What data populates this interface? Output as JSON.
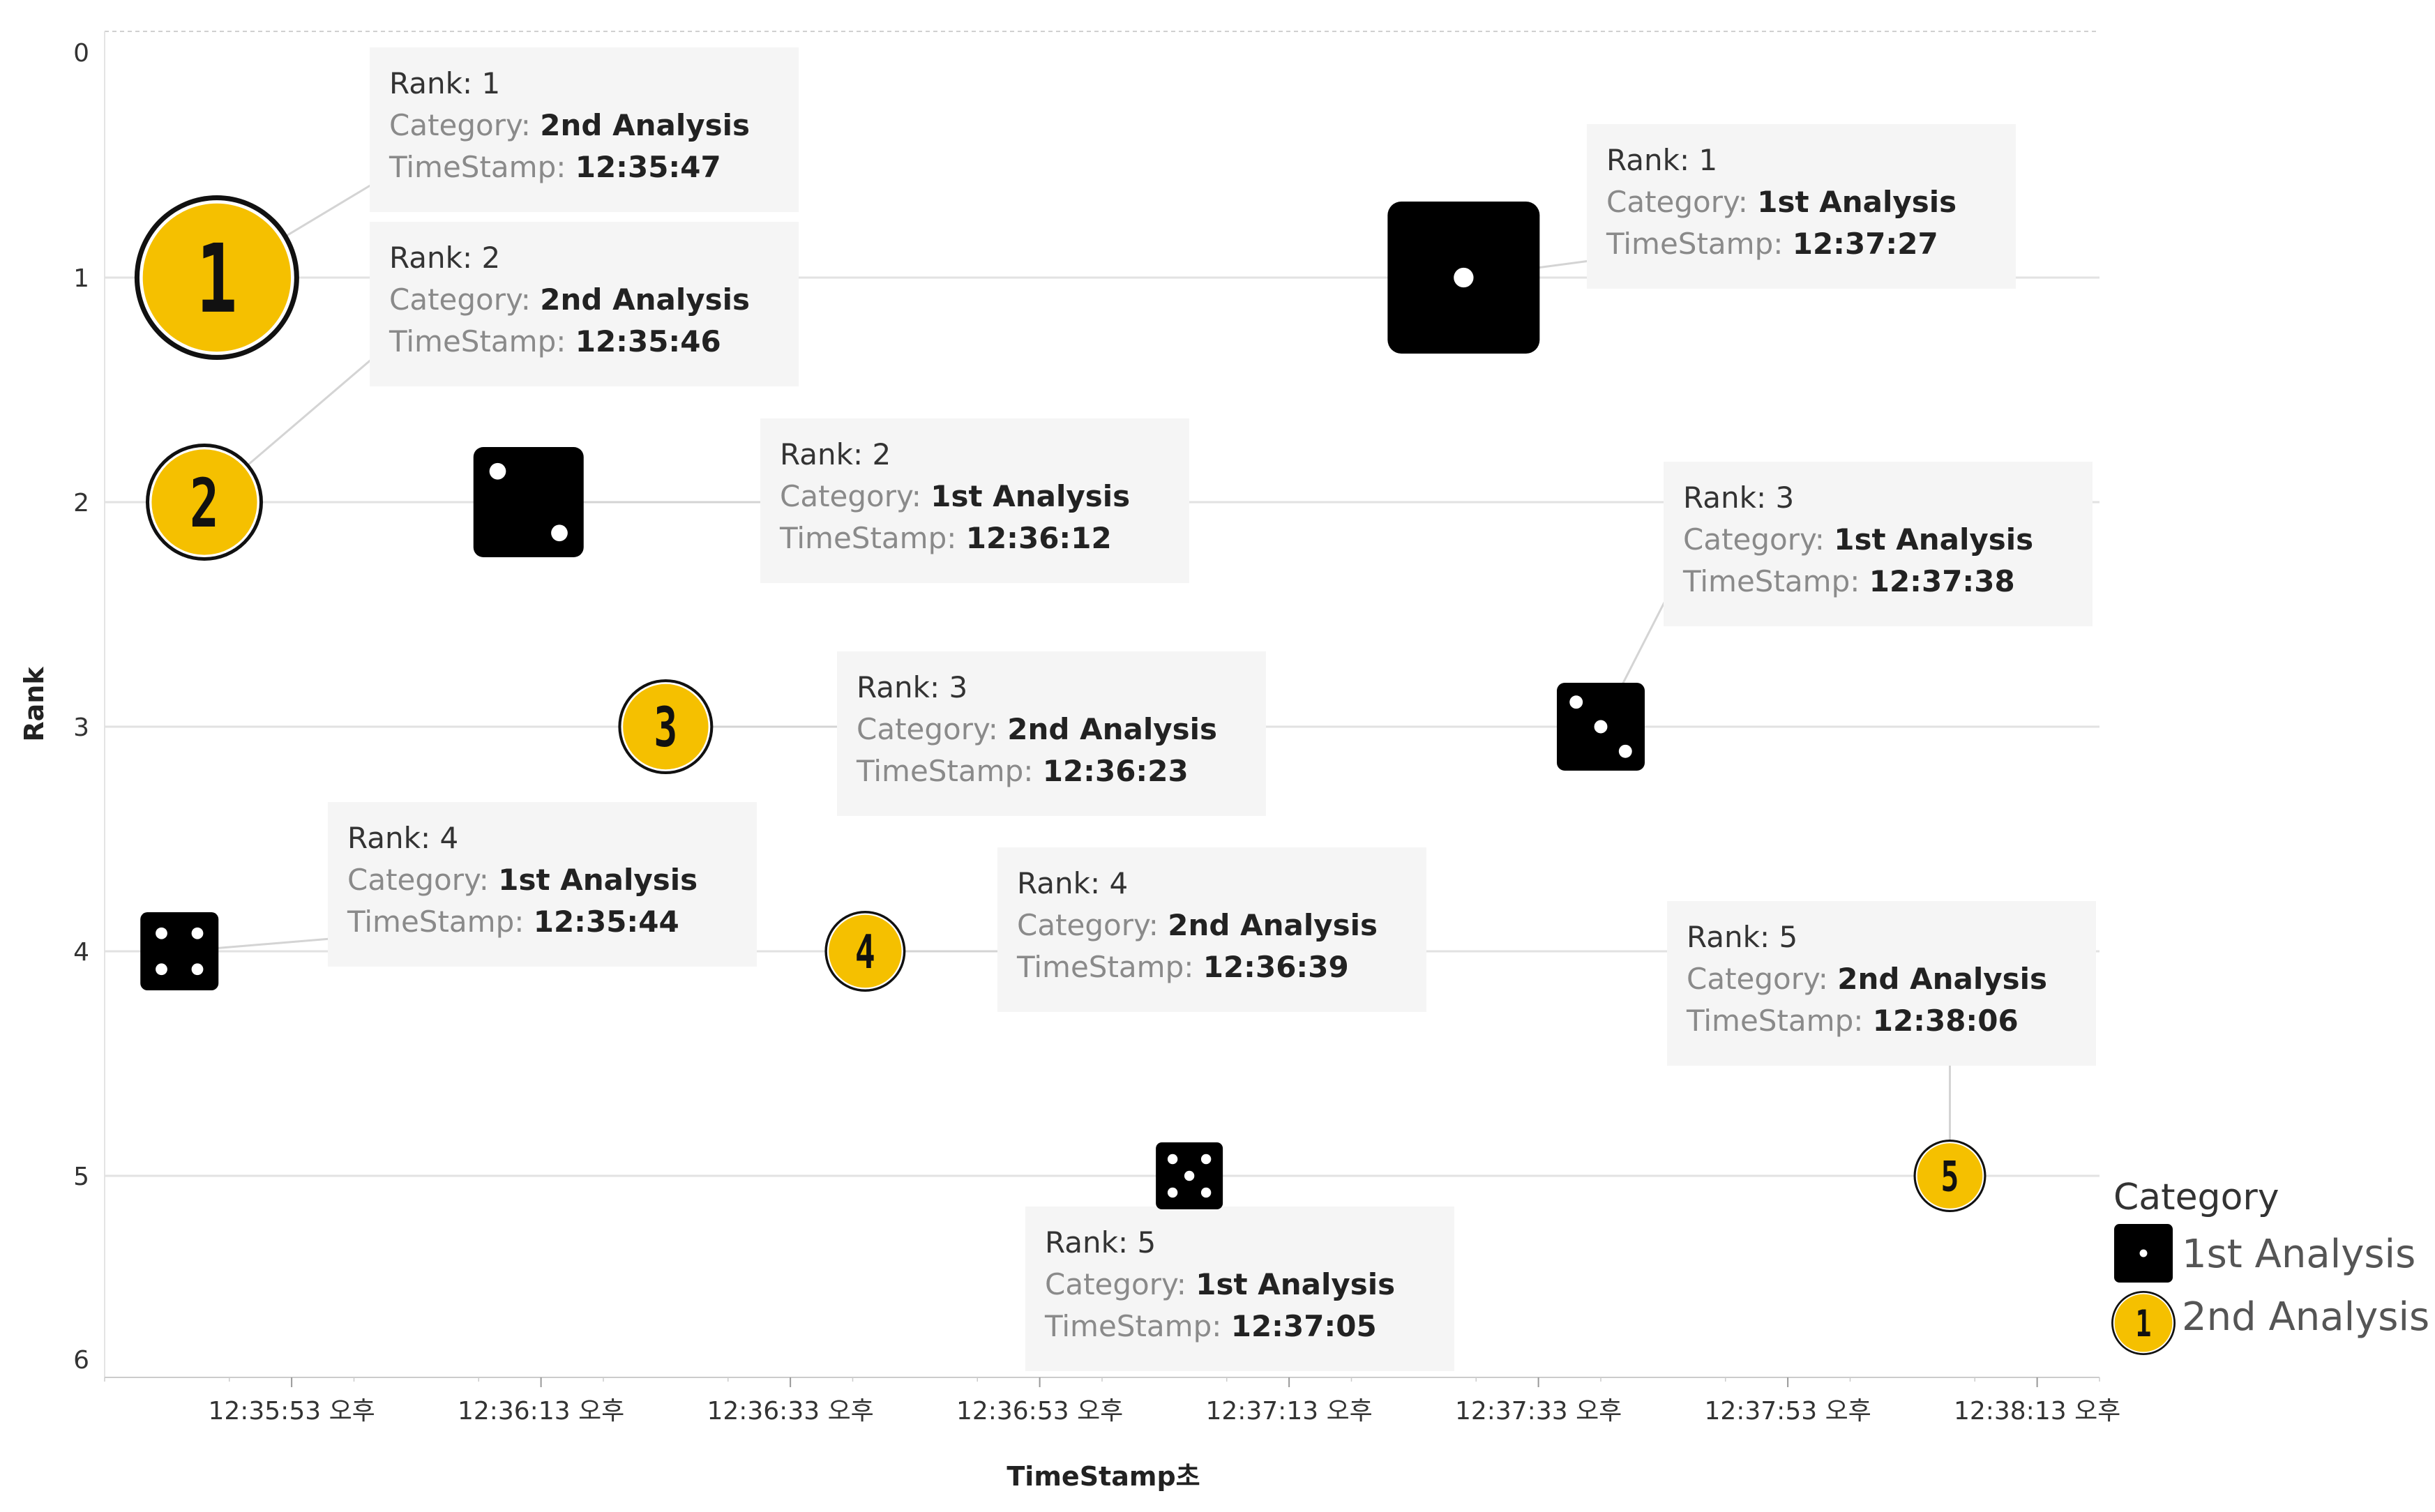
{
  "chart_data": {
    "type": "scatter",
    "title": "",
    "xlabel": "TimeStamp초",
    "ylabel": "Rank",
    "ylim": [
      0,
      6
    ],
    "y_reversed": true,
    "yticks": [
      "0",
      "1",
      "2",
      "3",
      "4",
      "5",
      "6"
    ],
    "xlim": [
      "12:35:38",
      "12:38:18"
    ],
    "xticks": [
      {
        "t": "12:35:53",
        "label": "12:35:53 오후"
      },
      {
        "t": "12:36:13",
        "label": "12:36:13 오후"
      },
      {
        "t": "12:36:33",
        "label": "12:36:33 오후"
      },
      {
        "t": "12:36:53",
        "label": "12:36:53 오후"
      },
      {
        "t": "12:37:13",
        "label": "12:37:13 오후"
      },
      {
        "t": "12:37:33",
        "label": "12:37:33 오후"
      },
      {
        "t": "12:37:53",
        "label": "12:37:53 오후"
      },
      {
        "t": "12:38:13",
        "label": "12:38:13 오후"
      }
    ],
    "grid": true,
    "legend": {
      "title": "Category",
      "position": "bottom-right",
      "items": [
        {
          "label": "1st Analysis",
          "marker": "die",
          "color": "#000000"
        },
        {
          "label": "2nd Analysis",
          "marker": "numbered-circle",
          "color": "#f5c000",
          "sample": "1"
        }
      ]
    },
    "tooltip_keys": {
      "rank": "Rank:",
      "category": "Category:",
      "timestamp": "TimeStamp:"
    },
    "series": [
      {
        "name": "1st Analysis",
        "points": [
          {
            "rank": 1,
            "time": "12:37:27",
            "rank_text": "1",
            "category": "1st Analysis",
            "timestamp": "12:37:27"
          },
          {
            "rank": 2,
            "time": "12:36:12",
            "rank_text": "2",
            "category": "1st Analysis",
            "timestamp": "12:36:12"
          },
          {
            "rank": 3,
            "time": "12:37:38",
            "rank_text": "3",
            "category": "1st Analysis",
            "timestamp": "12:37:38"
          },
          {
            "rank": 4,
            "time": "12:35:44",
            "rank_text": "4",
            "category": "1st Analysis",
            "timestamp": "12:35:44"
          },
          {
            "rank": 5,
            "time": "12:37:05",
            "rank_text": "5",
            "category": "1st Analysis",
            "timestamp": "12:37:05"
          }
        ]
      },
      {
        "name": "2nd Analysis",
        "points": [
          {
            "rank": 1,
            "time": "12:35:47",
            "rank_text": "1",
            "category": "2nd Analysis",
            "timestamp": "12:35:47"
          },
          {
            "rank": 2,
            "time": "12:35:46",
            "rank_text": "2",
            "category": "2nd Analysis",
            "timestamp": "12:35:46"
          },
          {
            "rank": 3,
            "time": "12:36:23",
            "rank_text": "3",
            "category": "2nd Analysis",
            "timestamp": "12:36:23"
          },
          {
            "rank": 4,
            "time": "12:36:39",
            "rank_text": "4",
            "category": "2nd Analysis",
            "timestamp": "12:36:39"
          },
          {
            "rank": 5,
            "time": "12:38:06",
            "rank_text": "5",
            "category": "2nd Analysis",
            "timestamp": "12:38:06"
          }
        ]
      }
    ]
  }
}
